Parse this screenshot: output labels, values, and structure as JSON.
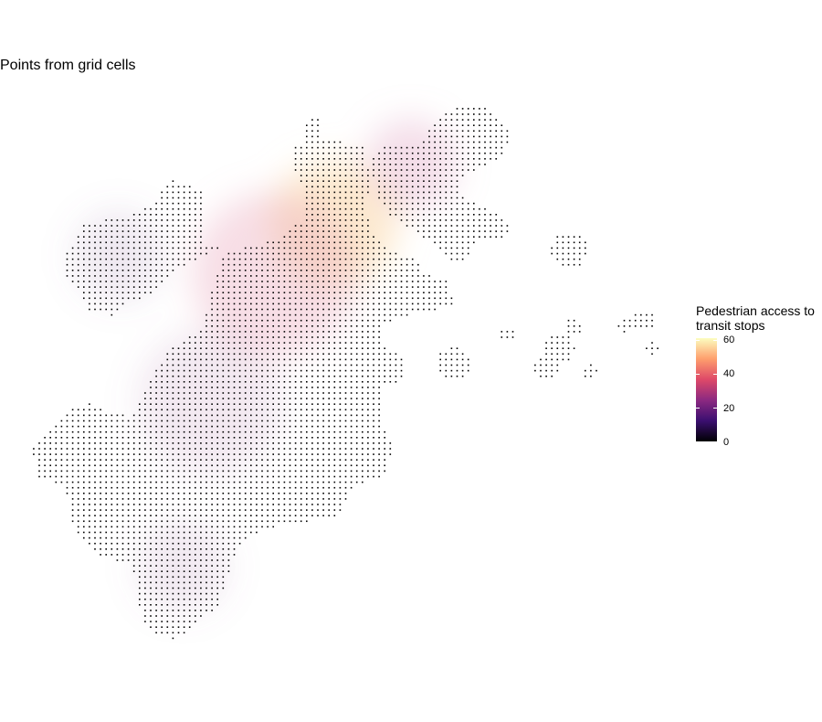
{
  "title": "Points from grid cells",
  "legend": {
    "title_line1": "Pedestrian access to",
    "title_line2": "transit stops",
    "ticks": [
      "0",
      "20",
      "40",
      "60"
    ],
    "range": [
      0,
      60
    ],
    "colors": [
      "#000004",
      "#3b0f70",
      "#8c2981",
      "#de4968",
      "#fe9f6d",
      "#fcfdbf"
    ]
  },
  "map": {
    "point_color": "#000000",
    "fill_scale": "magma"
  }
}
